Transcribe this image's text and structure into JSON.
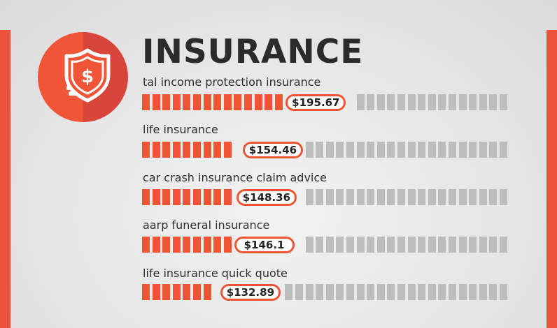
{
  "header": {
    "title": "INSURANCE",
    "icon": "shield-dollar-coins-icon"
  },
  "colors": {
    "accent": "#ef5535",
    "badge_dark": "#d8453a",
    "empty_segment": "#bdbdbd",
    "text": "#2b2b2b"
  },
  "chart_data": {
    "type": "bar",
    "title": "INSURANCE",
    "categories": [
      "tal income protection insurance",
      "life insurance",
      "car crash insurance claim advice",
      "aarp funeral insurance",
      "life insurance quick quote"
    ],
    "values": [
      195.67,
      154.46,
      148.36,
      146.1,
      132.89
    ],
    "value_labels": [
      "$195.67",
      "$154.46",
      "$148.36",
      "$146.1",
      "$132.89"
    ],
    "unit": "$",
    "xlim": [
      0,
      353
    ],
    "grid": false,
    "legend": "none"
  }
}
